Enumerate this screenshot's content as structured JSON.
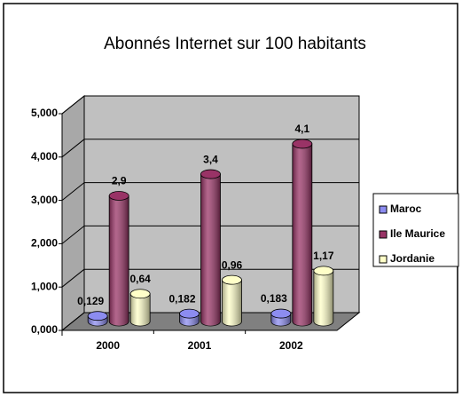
{
  "chart_data": {
    "type": "bar3d",
    "title": "Abonnés Internet sur 100 habitants",
    "categories": [
      "2000",
      "2001",
      "2002"
    ],
    "series": [
      {
        "name": "Maroc",
        "color": "#8c8cf0",
        "values": [
          0.129,
          0.182,
          0.183
        ],
        "value_labels": [
          "0,129",
          "0,182",
          "0,183"
        ]
      },
      {
        "name": "Ile Maurice",
        "color": "#993366",
        "values": [
          2.9,
          3.4,
          4.1
        ],
        "value_labels": [
          "2,9",
          "3,4",
          "4,1"
        ]
      },
      {
        "name": "Jordanie",
        "color": "#ffffc8",
        "values": [
          0.64,
          0.96,
          1.17
        ],
        "value_labels": [
          "0,64",
          "0,96",
          "1,17"
        ]
      }
    ],
    "ylim": [
      0,
      5
    ],
    "yticks": [
      {
        "value": 0,
        "label": "0,000"
      },
      {
        "value": 1,
        "label": "1,000"
      },
      {
        "value": 2,
        "label": "2,000"
      },
      {
        "value": 3,
        "label": "3,000"
      },
      {
        "value": 4,
        "label": "4,000"
      },
      {
        "value": 5,
        "label": "5,000"
      }
    ],
    "grid": true,
    "legend": "right"
  }
}
